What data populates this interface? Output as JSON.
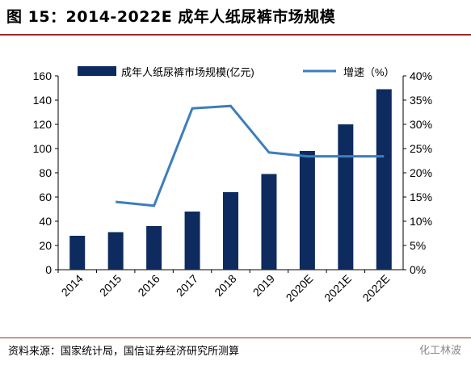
{
  "header": {
    "title": "图 15：2014-2022E 成年人纸尿裤市场规模"
  },
  "footer": {
    "source": "资料来源：国家统计局，国信证券经济研究所测算",
    "watermark": "化工林波"
  },
  "colors": {
    "bar": "#0d2b5e",
    "line": "#3d7ebd",
    "rule": "#9e2a2b"
  },
  "chart_data": {
    "type": "bar",
    "categories": [
      "2014",
      "2015",
      "2016",
      "2017",
      "2018",
      "2019",
      "2020E",
      "2021E",
      "2022E"
    ],
    "series": [
      {
        "name": "成年人纸尿裤市场规模(亿元)",
        "type": "bar",
        "axis": "left",
        "values": [
          28,
          31,
          36,
          48,
          64,
          79,
          98,
          120,
          149
        ]
      },
      {
        "name": "增速（%）",
        "type": "line",
        "axis": "right",
        "values": [
          null,
          14,
          13.2,
          33.3,
          33.8,
          24.2,
          23.4,
          23.4,
          23.4
        ]
      }
    ],
    "y_left": {
      "min": 0,
      "max": 160,
      "ticks": [
        "0",
        "20",
        "40",
        "60",
        "80",
        "100",
        "120",
        "140",
        "160"
      ]
    },
    "y_right": {
      "min": 0,
      "max": 40,
      "ticks": [
        "0%",
        "5%",
        "10%",
        "15%",
        "20%",
        "25%",
        "30%",
        "35%",
        "40%"
      ]
    },
    "legend": "top",
    "grid": false
  }
}
